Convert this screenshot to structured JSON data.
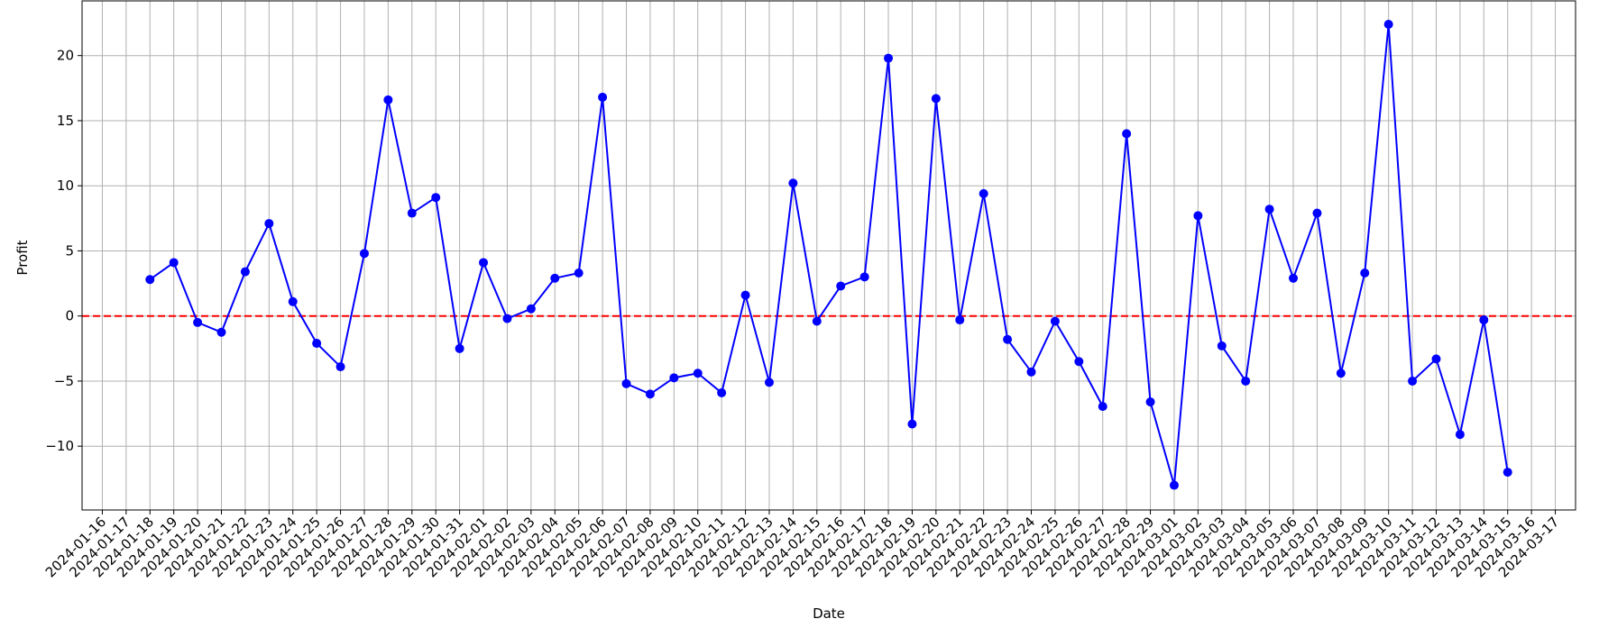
{
  "chart_data": {
    "type": "line",
    "x_label": "Date",
    "y_label": "Profit",
    "x": [
      "2024-01-18",
      "2024-01-19",
      "2024-01-20",
      "2024-01-21",
      "2024-01-22",
      "2024-01-23",
      "2024-01-24",
      "2024-01-25",
      "2024-01-26",
      "2024-01-27",
      "2024-01-28",
      "2024-01-29",
      "2024-01-30",
      "2024-01-31",
      "2024-02-01",
      "2024-02-02",
      "2024-02-03",
      "2024-02-04",
      "2024-02-05",
      "2024-02-06",
      "2024-02-07",
      "2024-02-08",
      "2024-02-09",
      "2024-02-10",
      "2024-02-11",
      "2024-02-12",
      "2024-02-13",
      "2024-02-14",
      "2024-02-15",
      "2024-02-16",
      "2024-02-17",
      "2024-02-18",
      "2024-02-19",
      "2024-02-20",
      "2024-02-21",
      "2024-02-22",
      "2024-02-23",
      "2024-02-24",
      "2024-02-25",
      "2024-02-26",
      "2024-02-27",
      "2024-02-28",
      "2024-02-29",
      "2024-03-01",
      "2024-03-02",
      "2024-03-03",
      "2024-03-04",
      "2024-03-05",
      "2024-03-06",
      "2024-03-07",
      "2024-03-08",
      "2024-03-09",
      "2024-03-10",
      "2024-03-11",
      "2024-03-12",
      "2024-03-13",
      "2024-03-14",
      "2024-03-15"
    ],
    "series": [
      {
        "name": "Profit",
        "color": "#0000ff",
        "values": [
          2.8,
          4.1,
          -0.5,
          -1.25,
          3.4,
          7.1,
          1.1,
          -2.1,
          -3.9,
          4.8,
          16.6,
          7.9,
          9.1,
          -2.5,
          4.1,
          -0.2,
          0.55,
          2.9,
          3.3,
          16.8,
          -5.2,
          -6.0,
          -4.75,
          -4.4,
          -5.9,
          1.6,
          -5.1,
          10.2,
          -0.4,
          2.3,
          3.0,
          19.8,
          -8.3,
          16.7,
          -0.3,
          9.4,
          -1.8,
          -4.3,
          -0.4,
          -3.5,
          -6.95,
          14.0,
          -6.6,
          -13.0,
          7.7,
          -2.3,
          -5.0,
          8.2,
          2.9,
          7.9,
          -4.4,
          3.3,
          22.4,
          -5.0,
          -3.3,
          -9.1,
          -0.3,
          -12.0
        ]
      }
    ],
    "reference_line": {
      "value": 0,
      "color": "#ff0000"
    },
    "xlim": [
      "2024-01-15T03:36",
      "2024-03-17T20:24"
    ],
    "xticks": [
      "2024-01-16",
      "2024-01-17",
      "2024-01-18",
      "2024-01-19",
      "2024-01-20",
      "2024-01-21",
      "2024-01-22",
      "2024-01-23",
      "2024-01-24",
      "2024-01-25",
      "2024-01-26",
      "2024-01-27",
      "2024-01-28",
      "2024-01-29",
      "2024-01-30",
      "2024-01-31",
      "2024-02-01",
      "2024-02-02",
      "2024-02-03",
      "2024-02-04",
      "2024-02-05",
      "2024-02-06",
      "2024-02-07",
      "2024-02-08",
      "2024-02-09",
      "2024-02-10",
      "2024-02-11",
      "2024-02-12",
      "2024-02-13",
      "2024-02-14",
      "2024-02-15",
      "2024-02-16",
      "2024-02-17",
      "2024-02-18",
      "2024-02-19",
      "2024-02-20",
      "2024-02-21",
      "2024-02-22",
      "2024-02-23",
      "2024-02-24",
      "2024-02-25",
      "2024-02-26",
      "2024-02-27",
      "2024-02-28",
      "2024-02-29",
      "2024-03-01",
      "2024-03-02",
      "2024-03-03",
      "2024-03-04",
      "2024-03-05",
      "2024-03-06",
      "2024-03-07",
      "2024-03-08",
      "2024-03-09",
      "2024-03-10",
      "2024-03-11",
      "2024-03-12",
      "2024-03-13",
      "2024-03-14",
      "2024-03-15",
      "2024-03-16",
      "2024-03-17"
    ],
    "ylim": [
      -14.9,
      24.2
    ],
    "yticks": [
      {
        "value": -10,
        "label": "−10"
      },
      {
        "value": -5,
        "label": "−5"
      },
      0,
      5,
      10,
      15,
      20
    ],
    "grid": true
  }
}
